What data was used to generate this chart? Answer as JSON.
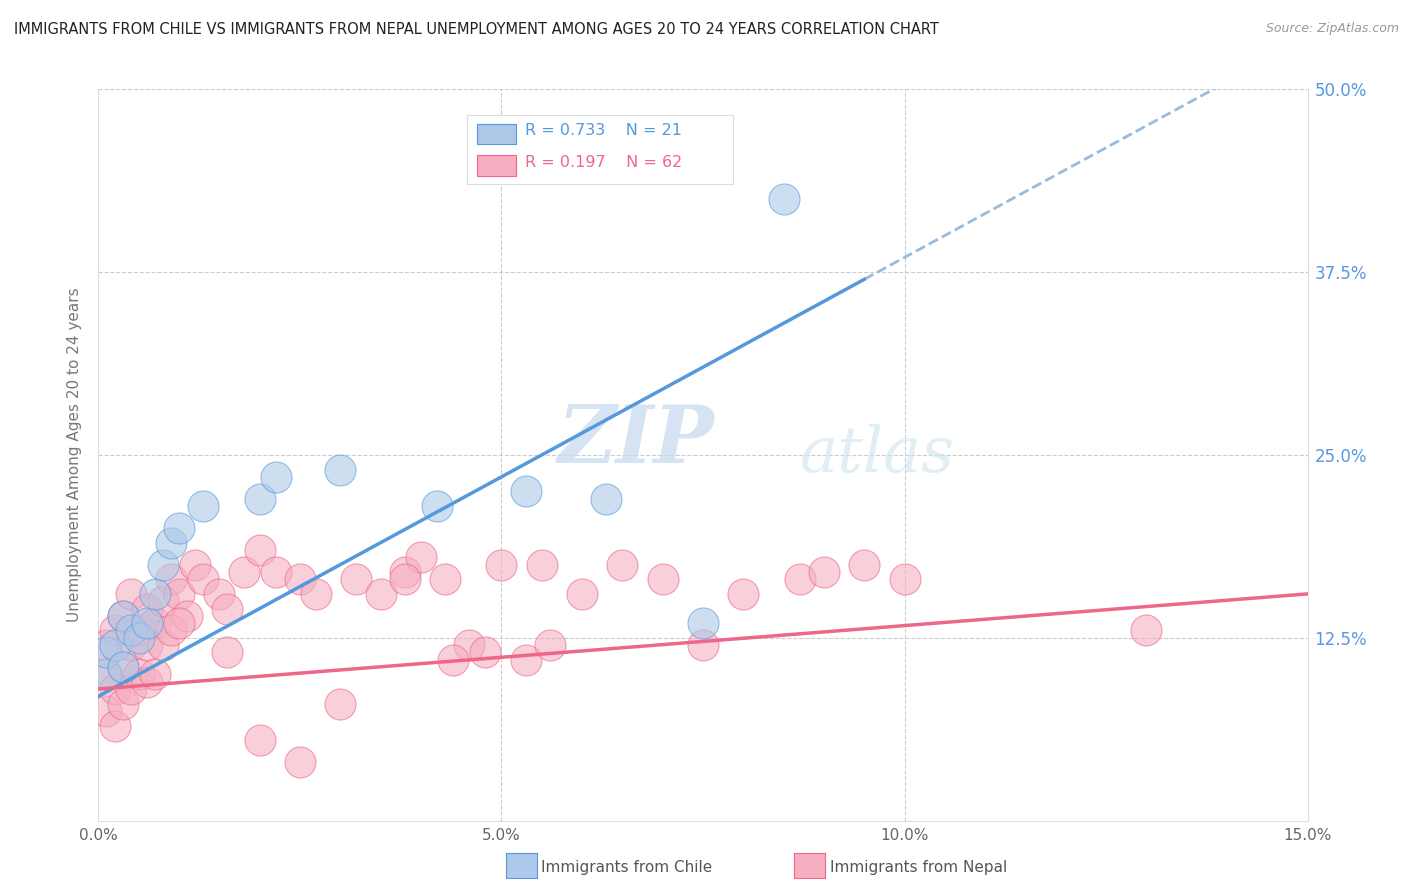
{
  "title": "IMMIGRANTS FROM CHILE VS IMMIGRANTS FROM NEPAL UNEMPLOYMENT AMONG AGES 20 TO 24 YEARS CORRELATION CHART",
  "source": "Source: ZipAtlas.com",
  "ylabel": "Unemployment Among Ages 20 to 24 years",
  "chile_R": 0.733,
  "chile_N": 21,
  "nepal_R": 0.197,
  "nepal_N": 62,
  "chile_color": "#adc8e8",
  "nepal_color": "#f5afc0",
  "chile_line_color": "#5599dd",
  "nepal_line_color": "#ee6688",
  "dashed_line_color": "#99bbdd",
  "xlim": [
    0,
    0.15
  ],
  "ylim": [
    0,
    0.5
  ],
  "watermark_zip": "ZIP",
  "watermark_atlas": "atlas",
  "chile_x": [
    0.001,
    0.001,
    0.002,
    0.003,
    0.003,
    0.004,
    0.005,
    0.006,
    0.007,
    0.008,
    0.009,
    0.01,
    0.013,
    0.02,
    0.022,
    0.03,
    0.042,
    0.053,
    0.063,
    0.075,
    0.085
  ],
  "chile_y": [
    0.1,
    0.115,
    0.12,
    0.105,
    0.14,
    0.13,
    0.125,
    0.135,
    0.155,
    0.175,
    0.19,
    0.2,
    0.215,
    0.22,
    0.235,
    0.24,
    0.215,
    0.225,
    0.22,
    0.135,
    0.425
  ],
  "nepal_x": [
    0.001,
    0.001,
    0.001,
    0.002,
    0.002,
    0.002,
    0.003,
    0.003,
    0.003,
    0.004,
    0.004,
    0.004,
    0.005,
    0.005,
    0.006,
    0.006,
    0.006,
    0.007,
    0.007,
    0.008,
    0.008,
    0.009,
    0.009,
    0.01,
    0.011,
    0.012,
    0.013,
    0.015,
    0.016,
    0.018,
    0.02,
    0.022,
    0.025,
    0.027,
    0.03,
    0.032,
    0.035,
    0.038,
    0.04,
    0.043,
    0.046,
    0.05,
    0.053,
    0.056,
    0.06,
    0.065,
    0.07,
    0.075,
    0.08,
    0.087,
    0.09,
    0.095,
    0.1,
    0.055,
    0.048,
    0.044,
    0.038,
    0.025,
    0.02,
    0.016,
    0.01,
    0.13
  ],
  "nepal_y": [
    0.12,
    0.1,
    0.075,
    0.13,
    0.09,
    0.065,
    0.105,
    0.14,
    0.08,
    0.155,
    0.12,
    0.09,
    0.13,
    0.1,
    0.145,
    0.12,
    0.095,
    0.135,
    0.1,
    0.15,
    0.12,
    0.165,
    0.13,
    0.155,
    0.14,
    0.175,
    0.165,
    0.155,
    0.145,
    0.17,
    0.185,
    0.17,
    0.165,
    0.155,
    0.08,
    0.165,
    0.155,
    0.17,
    0.18,
    0.165,
    0.12,
    0.175,
    0.11,
    0.12,
    0.155,
    0.175,
    0.165,
    0.12,
    0.155,
    0.165,
    0.17,
    0.175,
    0.165,
    0.175,
    0.115,
    0.11,
    0.165,
    0.04,
    0.055,
    0.115,
    0.135,
    0.13
  ]
}
